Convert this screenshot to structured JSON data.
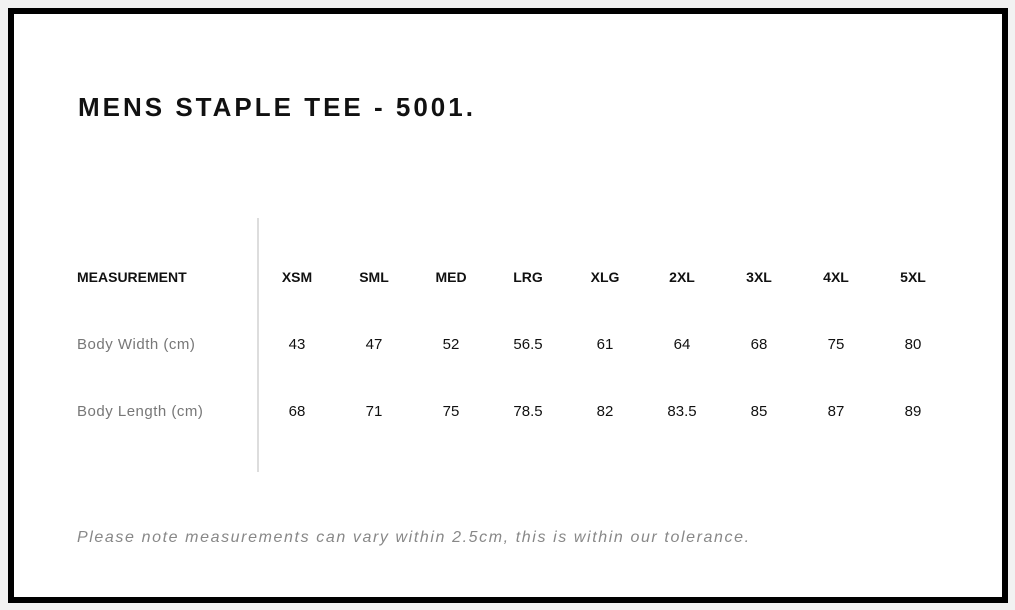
{
  "title": "MENS STAPLE TEE - 5001.",
  "table": {
    "header_label": "MEASUREMENT",
    "sizes": [
      "XSM",
      "SML",
      "MED",
      "LRG",
      "XLG",
      "2XL",
      "3XL",
      "4XL",
      "5XL"
    ],
    "rows": [
      {
        "label": "Body Width (cm)",
        "values": [
          "43",
          "47",
          "52",
          "56.5",
          "61",
          "64",
          "68",
          "75",
          "80"
        ]
      },
      {
        "label": "Body Length (cm)",
        "values": [
          "68",
          "71",
          "75",
          "78.5",
          "82",
          "83.5",
          "85",
          "87",
          "89"
        ]
      }
    ]
  },
  "note": "Please note measurements can vary within 2.5cm, this is within our tolerance."
}
